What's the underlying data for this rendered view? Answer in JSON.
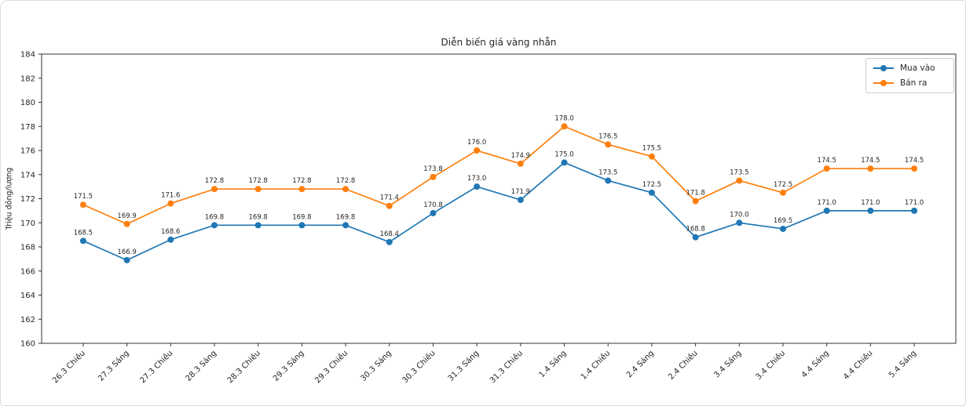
{
  "chart_data": {
    "type": "line",
    "title": "Diễn biến giá vàng nhẫn",
    "xlabel": "",
    "ylabel": "Triệu đồng/lượng",
    "ylim": [
      160,
      184
    ],
    "ytick_step": 2,
    "grid": false,
    "legend_position": "top-right",
    "point_labels": true,
    "point_label_decimals": 1,
    "categories": [
      "26.3 Chiều",
      "27.3 Sáng",
      "27.3 Chiều",
      "28.3 Sáng",
      "28.3 Chiều",
      "29.3 Sáng",
      "29.3 Chiều",
      "30.3 Sáng",
      "30.3 Chiều",
      "31.3 Sáng",
      "31.3 Chiều",
      "1.4 Sáng",
      "1.4 Chiều",
      "2.4 Sáng",
      "2.4 Chiều",
      "3.4 Sáng",
      "3.4 Chiều",
      "4.4 Sáng",
      "4.4 Chiều",
      "5.4 Sáng"
    ],
    "series": [
      {
        "name": "Mua vào",
        "color": "#1f77b4",
        "values": [
          168.5,
          166.9,
          168.6,
          169.8,
          169.8,
          169.8,
          169.8,
          168.4,
          170.8,
          173.0,
          171.9,
          175.0,
          173.5,
          172.5,
          168.8,
          170.0,
          169.5,
          171.0,
          171.0,
          171.0
        ]
      },
      {
        "name": "Bán ra",
        "color": "#ff7f0e",
        "values": [
          171.5,
          169.9,
          171.6,
          172.8,
          172.8,
          172.8,
          172.8,
          171.4,
          173.8,
          176.0,
          174.9,
          178.0,
          176.5,
          175.5,
          171.8,
          173.5,
          172.5,
          174.5,
          174.5,
          174.5
        ]
      }
    ],
    "text_color": "#262626",
    "axis_color": "#333333"
  }
}
